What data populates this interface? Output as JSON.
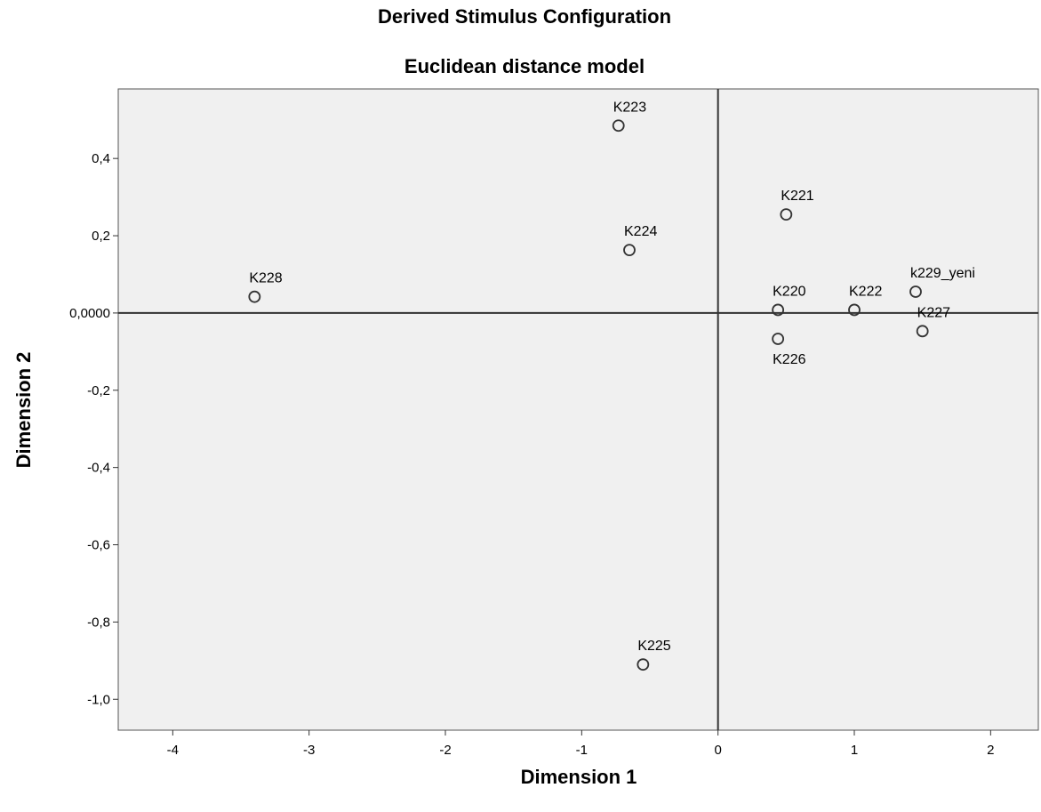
{
  "chart_data": {
    "type": "scatter",
    "title": "Derived Stimulus Configuration",
    "subtitle": "Euclidean distance model",
    "xlabel": "Dimension 1",
    "ylabel": "Dimension 2",
    "xlim": [
      -4.4,
      2.35
    ],
    "ylim": [
      -1.08,
      0.58
    ],
    "x_ticks": [
      -4,
      -3,
      -2,
      -1,
      0,
      1,
      2
    ],
    "x_tick_labels": [
      "-4",
      "-3",
      "-2",
      "-1",
      "0",
      "1",
      "2"
    ],
    "y_ticks": [
      0.4,
      0.2,
      0.0,
      -0.2,
      -0.4,
      -0.6,
      -0.8,
      -1.0
    ],
    "y_tick_labels": [
      "0,4",
      "0,2",
      "0,0000",
      "-0,2",
      "-0,4",
      "-0,6",
      "-0,8",
      "-1,0"
    ],
    "reference_lines": {
      "x": 0,
      "y": 0
    },
    "grid": false,
    "background_color": "#f0f0f0",
    "marker_color": "#333333",
    "points": [
      {
        "label": "K223",
        "x": -0.73,
        "y": 0.485,
        "label_pos": "above"
      },
      {
        "label": "K221",
        "x": 0.5,
        "y": 0.255,
        "label_pos": "above"
      },
      {
        "label": "K224",
        "x": -0.65,
        "y": 0.163,
        "label_pos": "above"
      },
      {
        "label": "K228",
        "x": -3.4,
        "y": 0.042,
        "label_pos": "above"
      },
      {
        "label": "k229_yeni",
        "x": 1.45,
        "y": 0.055,
        "label_pos": "above"
      },
      {
        "label": "K220",
        "x": 0.44,
        "y": 0.008,
        "label_pos": "above"
      },
      {
        "label": "K222",
        "x": 1.0,
        "y": 0.008,
        "label_pos": "above"
      },
      {
        "label": "K227",
        "x": 1.5,
        "y": -0.047,
        "label_pos": "above"
      },
      {
        "label": "K226",
        "x": 0.44,
        "y": -0.067,
        "label_pos": "below"
      },
      {
        "label": "K225",
        "x": -0.55,
        "y": -0.91,
        "label_pos": "above"
      }
    ]
  }
}
